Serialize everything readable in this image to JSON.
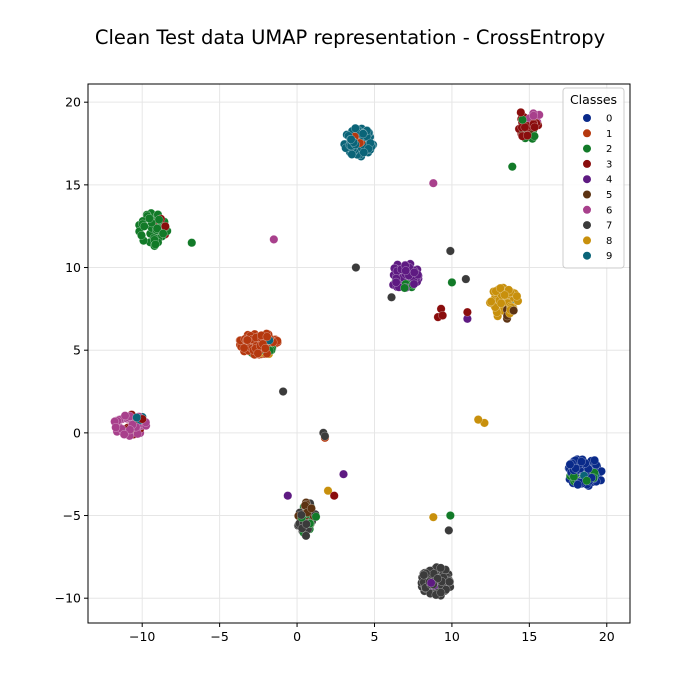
{
  "chart_data": {
    "type": "scatter",
    "title": "Clean Test data UMAP representation - CrossEntropy",
    "xlabel": "",
    "ylabel": "",
    "xlim": [
      -13.5,
      21.5
    ],
    "ylim": [
      -11.5,
      21.1
    ],
    "xticks": [
      -10,
      -5,
      0,
      5,
      10,
      15,
      20
    ],
    "yticks": [
      -10,
      -5,
      0,
      5,
      10,
      15,
      20
    ],
    "grid": true,
    "legend": {
      "title": "Classes",
      "placement": "upper-right"
    },
    "colors": [
      "#0a2a8a",
      "#b5380e",
      "#127a28",
      "#8a0d0d",
      "#5e1a82",
      "#5c3312",
      "#a8408c",
      "#3b3b3b",
      "#c8900c",
      "#0a6478"
    ],
    "series": [
      {
        "name": "0",
        "clusters": [
          {
            "cx": 18.6,
            "cy": -2.4,
            "rx": 1.2,
            "ry": 0.9,
            "n": 70
          }
        ],
        "points": []
      },
      {
        "name": "1",
        "clusters": [
          {
            "cx": -2.5,
            "cy": 5.4,
            "rx": 1.3,
            "ry": 0.7,
            "n": 70
          },
          {
            "cx": 3.8,
            "cy": 17.6,
            "rx": 0.5,
            "ry": 0.5,
            "n": 8
          }
        ],
        "points": [
          [
            1.8,
            -0.3
          ]
        ]
      },
      {
        "name": "2",
        "clusters": [
          {
            "cx": -9.3,
            "cy": 12.3,
            "rx": 1.0,
            "ry": 1.0,
            "n": 45
          },
          {
            "cx": 0.7,
            "cy": -5.2,
            "rx": 0.6,
            "ry": 1.0,
            "n": 12
          },
          {
            "cx": 18.5,
            "cy": -2.6,
            "rx": 1.0,
            "ry": 0.6,
            "n": 12
          },
          {
            "cx": 15.0,
            "cy": 18.4,
            "rx": 0.6,
            "ry": 0.8,
            "n": 10
          },
          {
            "cx": 7.0,
            "cy": 9.2,
            "rx": 0.8,
            "ry": 0.5,
            "n": 8
          },
          {
            "cx": -2.3,
            "cy": 5.0,
            "rx": 0.9,
            "ry": 0.4,
            "n": 8
          }
        ],
        "points": [
          [
            -6.8,
            11.5
          ],
          [
            13.9,
            16.1
          ],
          [
            10.0,
            9.1
          ],
          [
            9.9,
            -5.0
          ],
          [
            13.8,
            7.6
          ]
        ]
      },
      {
        "name": "3",
        "clusters": [
          {
            "cx": -10.6,
            "cy": 0.5,
            "rx": 0.8,
            "ry": 0.6,
            "n": 12
          },
          {
            "cx": 14.9,
            "cy": 18.7,
            "rx": 0.7,
            "ry": 0.9,
            "n": 18
          },
          {
            "cx": -9.0,
            "cy": 12.4,
            "rx": 0.7,
            "ry": 0.6,
            "n": 10
          }
        ],
        "points": [
          [
            9.3,
            7.5
          ],
          [
            9.1,
            7.0
          ],
          [
            9.4,
            7.1
          ],
          [
            11.0,
            7.3
          ],
          [
            2.4,
            -3.8
          ]
        ]
      },
      {
        "name": "4",
        "clusters": [
          {
            "cx": 6.9,
            "cy": 9.5,
            "rx": 1.0,
            "ry": 0.8,
            "n": 55
          },
          {
            "cx": 9.0,
            "cy": -9.2,
            "rx": 0.6,
            "ry": 0.5,
            "n": 8
          }
        ],
        "points": [
          [
            11.0,
            6.9
          ],
          [
            -0.6,
            -3.8
          ],
          [
            3.0,
            -2.5
          ]
        ]
      },
      {
        "name": "5",
        "clusters": [
          {
            "cx": 0.6,
            "cy": -4.8,
            "rx": 0.6,
            "ry": 0.8,
            "n": 18
          },
          {
            "cx": 15.0,
            "cy": 18.2,
            "rx": 0.5,
            "ry": 0.6,
            "n": 8
          },
          {
            "cx": 13.5,
            "cy": 7.3,
            "rx": 0.5,
            "ry": 0.4,
            "n": 6
          }
        ],
        "points": []
      },
      {
        "name": "6",
        "clusters": [
          {
            "cx": -10.8,
            "cy": 0.4,
            "rx": 1.1,
            "ry": 0.7,
            "n": 55
          },
          {
            "cx": 15.2,
            "cy": 19.0,
            "rx": 0.6,
            "ry": 0.4,
            "n": 8
          }
        ],
        "points": [
          [
            8.8,
            15.1
          ],
          [
            -1.5,
            11.7
          ]
        ]
      },
      {
        "name": "7",
        "clusters": [
          {
            "cx": 9.0,
            "cy": -9.0,
            "rx": 1.0,
            "ry": 0.9,
            "n": 60
          },
          {
            "cx": 0.6,
            "cy": -5.2,
            "rx": 0.6,
            "ry": 1.1,
            "n": 30
          }
        ],
        "points": [
          [
            3.8,
            10.0
          ],
          [
            6.1,
            8.2
          ],
          [
            9.9,
            11.0
          ],
          [
            10.9,
            9.3
          ],
          [
            -0.9,
            2.5
          ],
          [
            1.7,
            0.0
          ],
          [
            1.8,
            -0.2
          ],
          [
            9.8,
            -5.9
          ]
        ]
      },
      {
        "name": "8",
        "clusters": [
          {
            "cx": 13.3,
            "cy": 7.9,
            "rx": 1.0,
            "ry": 0.9,
            "n": 60
          },
          {
            "cx": -2.2,
            "cy": 5.0,
            "rx": 0.7,
            "ry": 0.4,
            "n": 6
          }
        ],
        "points": [
          [
            11.7,
            0.8
          ],
          [
            12.1,
            0.6
          ],
          [
            2.0,
            -3.5
          ],
          [
            8.8,
            -5.1
          ]
        ]
      },
      {
        "name": "9",
        "clusters": [
          {
            "cx": 4.0,
            "cy": 17.6,
            "rx": 1.0,
            "ry": 0.9,
            "n": 70
          },
          {
            "cx": -2.3,
            "cy": 5.3,
            "rx": 0.8,
            "ry": 0.4,
            "n": 10
          },
          {
            "cx": -10.4,
            "cy": 0.6,
            "rx": 0.6,
            "ry": 0.5,
            "n": 8
          },
          {
            "cx": 18.9,
            "cy": -2.4,
            "rx": 0.5,
            "ry": 0.4,
            "n": 6
          }
        ],
        "points": [
          [
            13.9,
            8.1
          ]
        ]
      }
    ]
  }
}
